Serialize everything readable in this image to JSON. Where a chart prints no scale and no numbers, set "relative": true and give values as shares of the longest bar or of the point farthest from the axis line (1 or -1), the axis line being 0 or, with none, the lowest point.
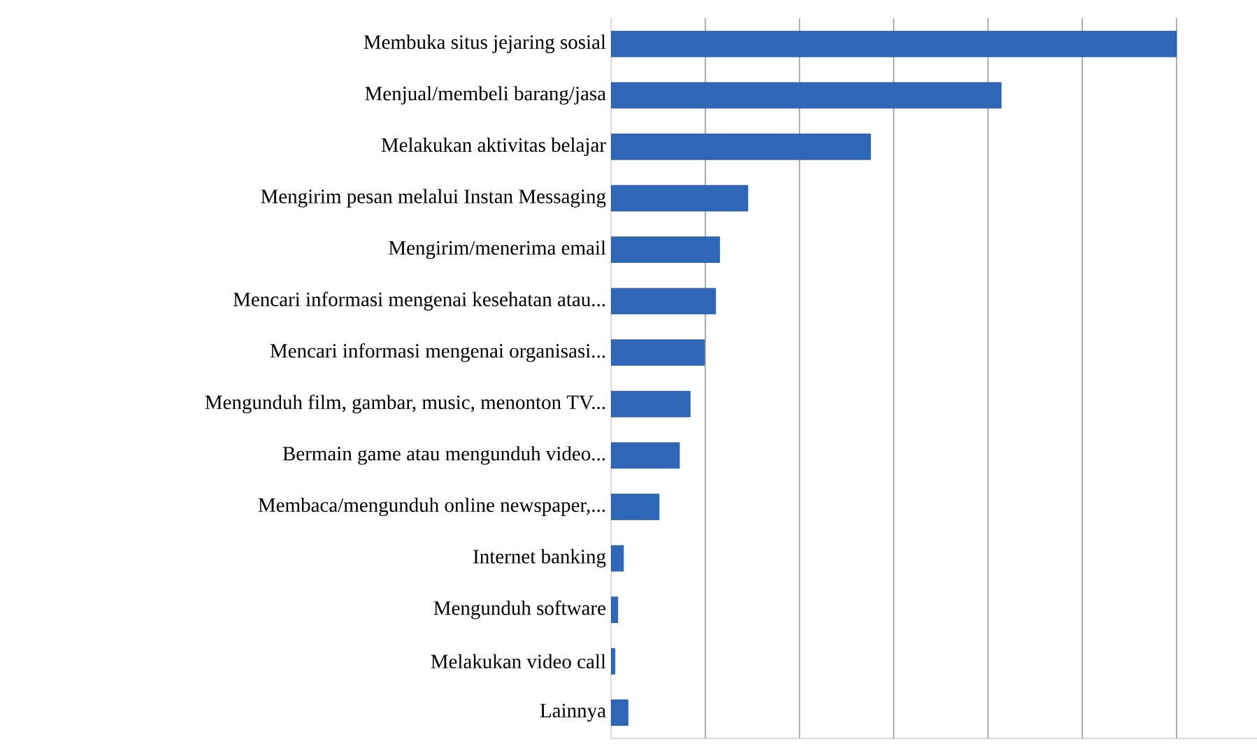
{
  "chart_data": {
    "type": "bar",
    "orientation": "horizontal",
    "relative": true,
    "grid": "x",
    "color": "#2e67b8",
    "categories": [
      "Membuka situs jejaring sosial",
      "Menjual/membeli barang/jasa",
      "Melakukan aktivitas belajar",
      "Mengirim pesan melalui Instan Messaging",
      "Mengirim/menerima email",
      "Mencari informasi mengenai kesehatan atau...",
      "Mencari informasi mengenai organisasi...",
      "Mengunduh film, gambar, music, menonton TV...",
      "Bermain game atau mengunduh video...",
      "Membaca/mengunduh online newspaper,...",
      "Internet banking",
      "Mengunduh software",
      "Melakukan video call",
      "Lainnya"
    ],
    "values": [
      1.0,
      0.69,
      0.459,
      0.242,
      0.192,
      0.185,
      0.165,
      0.14,
      0.121,
      0.085,
      0.022,
      0.012,
      0.007,
      0.03
    ]
  }
}
